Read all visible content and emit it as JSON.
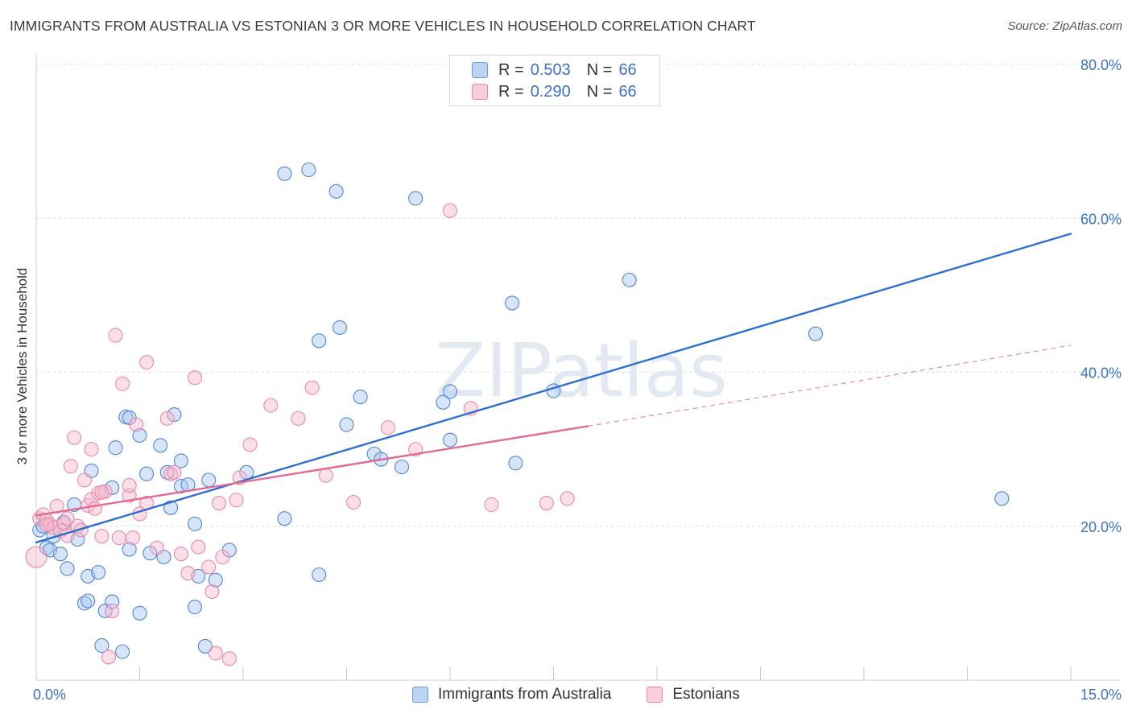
{
  "title": "IMMIGRANTS FROM AUSTRALIA VS ESTONIAN 3 OR MORE VEHICLES IN HOUSEHOLD CORRELATION CHART",
  "source": "Source: ZipAtlas.com",
  "watermark": "ZIPatlas",
  "legend_top": [
    {
      "r_label": "R =",
      "r_value": "0.503",
      "n_label": "N =",
      "n_value": "66",
      "color": "#a9c6f0"
    },
    {
      "r_label": "R =",
      "r_value": "0.290",
      "n_label": "N =",
      "n_value": "66",
      "color": "#f6b8cb"
    }
  ],
  "legend_bottom": [
    {
      "label": "Immigrants from Australia",
      "color": "#a9c6f0"
    },
    {
      "label": "Estonians",
      "color": "#f6b8cb"
    }
  ],
  "chart_data": {
    "type": "scatter",
    "title": "IMMIGRANTS FROM AUSTRALIA VS ESTONIAN 3 OR MORE VEHICLES IN HOUSEHOLD CORRELATION CHART",
    "xlabel": "",
    "ylabel": "3 or more Vehicles in Household",
    "xlim": [
      0,
      15
    ],
    "ylim": [
      0,
      80
    ],
    "x_tick_labels": [
      {
        "value": 0,
        "label": "0.0%"
      },
      {
        "value": 15,
        "label": "15.0%"
      }
    ],
    "y_tick_labels": [
      {
        "value": 20,
        "label": "20.0%"
      },
      {
        "value": 40,
        "label": "40.0%"
      },
      {
        "value": 60,
        "label": "60.0%"
      },
      {
        "value": 80,
        "label": "80.0%"
      }
    ],
    "series": [
      {
        "name": "Immigrants from Australia",
        "color": "#4f86d6",
        "fill": "#a9c6f0",
        "trend_color": "#2f6fd0",
        "trend": {
          "x0": 0.0,
          "y0": 17.9,
          "x1": 15.0,
          "y1": 58.0
        },
        "points": [
          [
            0.05,
            19.5
          ],
          [
            0.1,
            20.0
          ],
          [
            0.15,
            17.2
          ],
          [
            0.2,
            16.9
          ],
          [
            0.25,
            18.7
          ],
          [
            0.35,
            16.4
          ],
          [
            0.4,
            20.5
          ],
          [
            0.45,
            14.5
          ],
          [
            0.55,
            22.8
          ],
          [
            0.6,
            18.3
          ],
          [
            0.7,
            10.0
          ],
          [
            0.75,
            13.5
          ],
          [
            0.75,
            10.3
          ],
          [
            0.8,
            27.2
          ],
          [
            0.9,
            14.0
          ],
          [
            0.95,
            4.5
          ],
          [
            1.0,
            9.0
          ],
          [
            1.1,
            10.2
          ],
          [
            1.1,
            25.0
          ],
          [
            1.15,
            30.2
          ],
          [
            1.25,
            3.7
          ],
          [
            1.3,
            34.2
          ],
          [
            1.35,
            34.1
          ],
          [
            1.35,
            17.0
          ],
          [
            1.5,
            31.8
          ],
          [
            1.5,
            8.7
          ],
          [
            1.6,
            26.8
          ],
          [
            1.65,
            16.5
          ],
          [
            1.8,
            30.5
          ],
          [
            1.85,
            16.0
          ],
          [
            1.9,
            27.0
          ],
          [
            1.95,
            22.4
          ],
          [
            2.0,
            34.5
          ],
          [
            2.1,
            28.5
          ],
          [
            2.1,
            25.2
          ],
          [
            2.2,
            25.4
          ],
          [
            2.3,
            20.3
          ],
          [
            2.3,
            9.5
          ],
          [
            2.35,
            13.5
          ],
          [
            2.45,
            4.4
          ],
          [
            2.5,
            26.0
          ],
          [
            2.6,
            13.0
          ],
          [
            2.8,
            16.9
          ],
          [
            3.05,
            27.0
          ],
          [
            3.6,
            21.0
          ],
          [
            3.6,
            65.8
          ],
          [
            3.95,
            66.3
          ],
          [
            4.1,
            44.1
          ],
          [
            4.1,
            13.7
          ],
          [
            4.35,
            63.5
          ],
          [
            4.4,
            45.8
          ],
          [
            4.5,
            33.2
          ],
          [
            4.7,
            36.8
          ],
          [
            4.9,
            29.4
          ],
          [
            5.0,
            28.7
          ],
          [
            5.3,
            27.7
          ],
          [
            5.5,
            62.6
          ],
          [
            5.9,
            36.1
          ],
          [
            6.0,
            37.5
          ],
          [
            6.0,
            31.2
          ],
          [
            6.9,
            49.0
          ],
          [
            6.95,
            28.2
          ],
          [
            7.5,
            37.6
          ],
          [
            8.6,
            52.0
          ],
          [
            11.3,
            45.0
          ],
          [
            14.0,
            23.6
          ]
        ]
      },
      {
        "name": "Estonians",
        "color": "#e889a8",
        "fill": "#f6b8cb",
        "trend_color": "#e06b96",
        "trend": {
          "x0": 0.0,
          "y0": 21.4,
          "x1": 8.0,
          "y1": 33.0
        },
        "trend_dashed_to": {
          "x": 15.0,
          "y": 43.5
        },
        "points": [
          [
            0.0,
            16.0
          ],
          [
            0.05,
            21.0
          ],
          [
            0.1,
            21.5
          ],
          [
            0.15,
            20.8
          ],
          [
            0.2,
            20.2
          ],
          [
            0.25,
            19.8
          ],
          [
            0.3,
            22.6
          ],
          [
            0.35,
            19.4
          ],
          [
            0.4,
            20.3
          ],
          [
            0.45,
            18.8
          ],
          [
            0.5,
            27.8
          ],
          [
            0.55,
            31.5
          ],
          [
            0.6,
            20.0
          ],
          [
            0.7,
            26.0
          ],
          [
            0.75,
            22.7
          ],
          [
            0.8,
            23.5
          ],
          [
            0.8,
            30.0
          ],
          [
            0.85,
            22.3
          ],
          [
            0.9,
            24.3
          ],
          [
            0.95,
            18.7
          ],
          [
            1.0,
            24.5
          ],
          [
            1.05,
            3.0
          ],
          [
            1.1,
            9.0
          ],
          [
            1.15,
            44.8
          ],
          [
            1.2,
            18.5
          ],
          [
            1.25,
            38.5
          ],
          [
            1.35,
            24.0
          ],
          [
            1.4,
            18.5
          ],
          [
            1.45,
            33.2
          ],
          [
            1.5,
            21.6
          ],
          [
            1.6,
            23.0
          ],
          [
            1.6,
            41.3
          ],
          [
            1.9,
            34.0
          ],
          [
            1.95,
            26.8
          ],
          [
            2.1,
            16.4
          ],
          [
            2.2,
            13.9
          ],
          [
            2.3,
            39.3
          ],
          [
            2.35,
            17.3
          ],
          [
            2.5,
            14.7
          ],
          [
            2.55,
            11.5
          ],
          [
            2.6,
            3.5
          ],
          [
            2.65,
            23.0
          ],
          [
            2.7,
            16.0
          ],
          [
            2.8,
            2.8
          ],
          [
            2.9,
            23.4
          ],
          [
            2.95,
            26.3
          ],
          [
            3.1,
            30.6
          ],
          [
            3.4,
            35.7
          ],
          [
            3.8,
            34.0
          ],
          [
            4.0,
            38.0
          ],
          [
            4.2,
            26.6
          ],
          [
            4.6,
            23.1
          ],
          [
            5.1,
            32.8
          ],
          [
            5.5,
            30.0
          ],
          [
            6.0,
            61.0
          ],
          [
            6.3,
            35.3
          ],
          [
            6.6,
            22.8
          ],
          [
            7.4,
            23.0
          ],
          [
            7.7,
            23.6
          ],
          [
            0.95,
            24.4
          ],
          [
            1.35,
            25.3
          ],
          [
            2.0,
            27.0
          ],
          [
            1.75,
            17.2
          ],
          [
            0.65,
            19.5
          ],
          [
            0.45,
            21.0
          ],
          [
            0.15,
            20.2
          ]
        ]
      }
    ]
  }
}
